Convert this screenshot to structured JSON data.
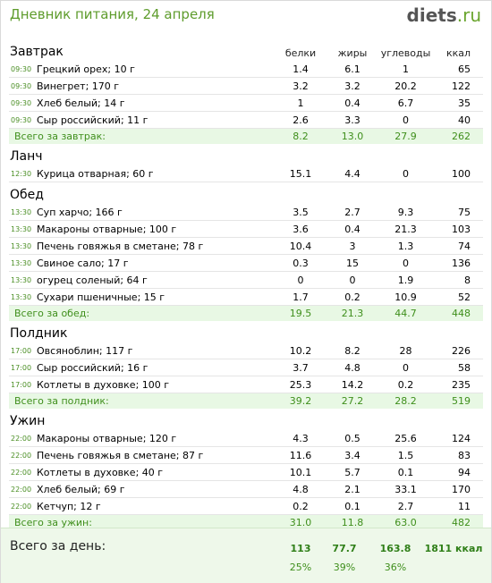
{
  "header": {
    "title": "Дневник питания, 24 апреля",
    "logo_main": "diets",
    "logo_tld": ".ru"
  },
  "columns": {
    "protein": "белки",
    "fat": "жиры",
    "carbs": "углеводы",
    "kcal": "ккал"
  },
  "meals": [
    {
      "name": "Завтрак",
      "items": [
        {
          "time": "09:30",
          "food": "Грецкий орех; 10 г",
          "protein": "1.4",
          "fat": "6.1",
          "carbs": "1",
          "kcal": "65"
        },
        {
          "time": "09:30",
          "food": "Винегрет; 170 г",
          "protein": "3.2",
          "fat": "3.2",
          "carbs": "20.2",
          "kcal": "122"
        },
        {
          "time": "09:30",
          "food": "Хлеб белый; 14 г",
          "protein": "1",
          "fat": "0.4",
          "carbs": "6.7",
          "kcal": "35"
        },
        {
          "time": "09:30",
          "food": "Сыр российский; 11 г",
          "protein": "2.6",
          "fat": "3.3",
          "carbs": "0",
          "kcal": "40"
        }
      ],
      "total": {
        "label": "Всего за завтрак:",
        "protein": "8.2",
        "fat": "13.0",
        "carbs": "27.9",
        "kcal": "262"
      }
    },
    {
      "name": "Ланч",
      "items": [
        {
          "time": "12:30",
          "food": "Курица отварная; 60 г",
          "protein": "15.1",
          "fat": "4.4",
          "carbs": "0",
          "kcal": "100"
        }
      ],
      "total": null
    },
    {
      "name": "Обед",
      "items": [
        {
          "time": "13:30",
          "food": "Суп харчо; 166 г",
          "protein": "3.5",
          "fat": "2.7",
          "carbs": "9.3",
          "kcal": "75"
        },
        {
          "time": "13:30",
          "food": "Макароны отварные; 100 г",
          "protein": "3.6",
          "fat": "0.4",
          "carbs": "21.3",
          "kcal": "103"
        },
        {
          "time": "13:30",
          "food": "Печень говяжья в сметане; 78 г",
          "protein": "10.4",
          "fat": "3",
          "carbs": "1.3",
          "kcal": "74"
        },
        {
          "time": "13:30",
          "food": "Свиное сало; 17 г",
          "protein": "0.3",
          "fat": "15",
          "carbs": "0",
          "kcal": "136"
        },
        {
          "time": "13:30",
          "food": "огурец соленый; 64 г",
          "protein": "0",
          "fat": "0",
          "carbs": "1.9",
          "kcal": "8"
        },
        {
          "time": "13:30",
          "food": "Сухари пшеничные; 15 г",
          "protein": "1.7",
          "fat": "0.2",
          "carbs": "10.9",
          "kcal": "52"
        }
      ],
      "total": {
        "label": "Всего за обед:",
        "protein": "19.5",
        "fat": "21.3",
        "carbs": "44.7",
        "kcal": "448"
      }
    },
    {
      "name": "Полдник",
      "items": [
        {
          "time": "17:00",
          "food": "Овсяноблин; 117 г",
          "protein": "10.2",
          "fat": "8.2",
          "carbs": "28",
          "kcal": "226"
        },
        {
          "time": "17:00",
          "food": "Сыр российский; 16 г",
          "protein": "3.7",
          "fat": "4.8",
          "carbs": "0",
          "kcal": "58"
        },
        {
          "time": "17:00",
          "food": "Котлеты в духовке; 100 г",
          "protein": "25.3",
          "fat": "14.2",
          "carbs": "0.2",
          "kcal": "235"
        }
      ],
      "total": {
        "label": "Всего за полдник:",
        "protein": "39.2",
        "fat": "27.2",
        "carbs": "28.2",
        "kcal": "519"
      }
    },
    {
      "name": "Ужин",
      "items": [
        {
          "time": "22:00",
          "food": "Макароны отварные; 120 г",
          "protein": "4.3",
          "fat": "0.5",
          "carbs": "25.6",
          "kcal": "124"
        },
        {
          "time": "22:00",
          "food": "Печень говяжья в сметане; 87 г",
          "protein": "11.6",
          "fat": "3.4",
          "carbs": "1.5",
          "kcal": "83"
        },
        {
          "time": "22:00",
          "food": "Котлеты в духовке; 40 г",
          "protein": "10.1",
          "fat": "5.7",
          "carbs": "0.1",
          "kcal": "94"
        },
        {
          "time": "22:00",
          "food": "Хлеб белый; 69 г",
          "protein": "4.8",
          "fat": "2.1",
          "carbs": "33.1",
          "kcal": "170"
        },
        {
          "time": "22:00",
          "food": "Кетчуп; 12 г",
          "protein": "0.2",
          "fat": "0.1",
          "carbs": "2.7",
          "kcal": "11"
        }
      ],
      "total": {
        "label": "Всего за ужин:",
        "protein": "31.0",
        "fat": "11.8",
        "carbs": "63.0",
        "kcal": "482"
      }
    }
  ],
  "day": {
    "label": "Всего за день:",
    "protein": "113",
    "fat": "77.7",
    "carbs": "163.8",
    "kcal": "1811 ккал",
    "protein_pct": "25%",
    "fat_pct": "39%",
    "carbs_pct": "36%"
  },
  "colors": {
    "accent": "#5e9c2c",
    "total_bg": "#e8f8e4",
    "total_text": "#3f8f1c",
    "time": "#4b8f25"
  }
}
